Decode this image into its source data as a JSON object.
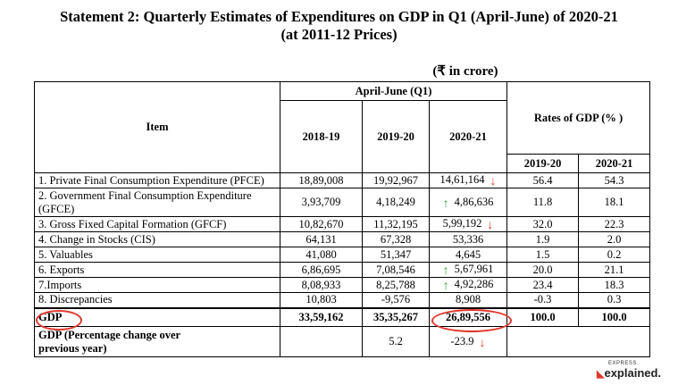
{
  "title_line1": "Statement 2: Quarterly Estimates of Expenditures on GDP in Q1 (April-June) of 2020-21",
  "title_line2": "(at 2011-12 Prices)",
  "unit_note": "(₹ in crore)",
  "header": {
    "item": "Item",
    "period": "April-June (Q1)",
    "years": [
      "2018-19",
      "2019-20",
      "2020-21"
    ],
    "rates_title": "Rates of GDP (% )",
    "rates_years": [
      "2019-20",
      "2020-21"
    ]
  },
  "rows": [
    {
      "item": "1. Private Final Consumption Expenditure (PFCE)",
      "v1": "18,89,008",
      "v2": "19,92,967",
      "v3": "14,61,164",
      "r1": "56.4",
      "r2": "54.3"
    },
    {
      "item": "2. Government Final Consumption Expenditure",
      "item2": "(GFCE)",
      "v1": "3,93,709",
      "v2": "4,18,249",
      "v3": "4,86,636",
      "r1": "11.8",
      "r2": "18.1"
    },
    {
      "item": "3. Gross Fixed Capital Formation (GFCF)",
      "v1": "10,82,670",
      "v2": "11,32,195",
      "v3": "5,99,192",
      "r1": "32.0",
      "r2": "22.3"
    },
    {
      "item": "4. Change in Stocks (CIS)",
      "v1": "64,131",
      "v2": "67,328",
      "v3": "53,336",
      "r1": "1.9",
      "r2": "2.0"
    },
    {
      "item": "5. Valuables",
      "v1": "41,080",
      "v2": "51,347",
      "v3": "4,645",
      "r1": "1.5",
      "r2": "0.2"
    },
    {
      "item": "6. Exports",
      "v1": "6,86,695",
      "v2": "7,08,546",
      "v3": "5,67,961",
      "r1": "20.0",
      "r2": "21.1"
    },
    {
      "item": "7.Imports",
      "v1": "8,08,933",
      "v2": "8,25,788",
      "v3": "4,92,286",
      "r1": "23.4",
      "r2": "18.3"
    },
    {
      "item": "8. Discrepancies",
      "v1": "10,803",
      "v2": "-9,576",
      "v3": "8,908",
      "r1": "-0.3",
      "r2": "0.3"
    }
  ],
  "gdp_row": {
    "item": "GDP",
    "v1": "33,59,162",
    "v2": "35,35,267",
    "v3": "26,89,556",
    "r1": "100.0",
    "r2": "100.0"
  },
  "pct_row": {
    "item1": "GDP (Percentage change over",
    "item2": "previous year)",
    "v2": "5.2",
    "v3": "-23.9"
  },
  "arrows": {
    "down": "↓",
    "up": "↑"
  },
  "colors": {
    "accent": "#e0372c",
    "up": "#2f9e3e"
  },
  "logo": {
    "small": "EXPRESS",
    "big": "explained."
  }
}
